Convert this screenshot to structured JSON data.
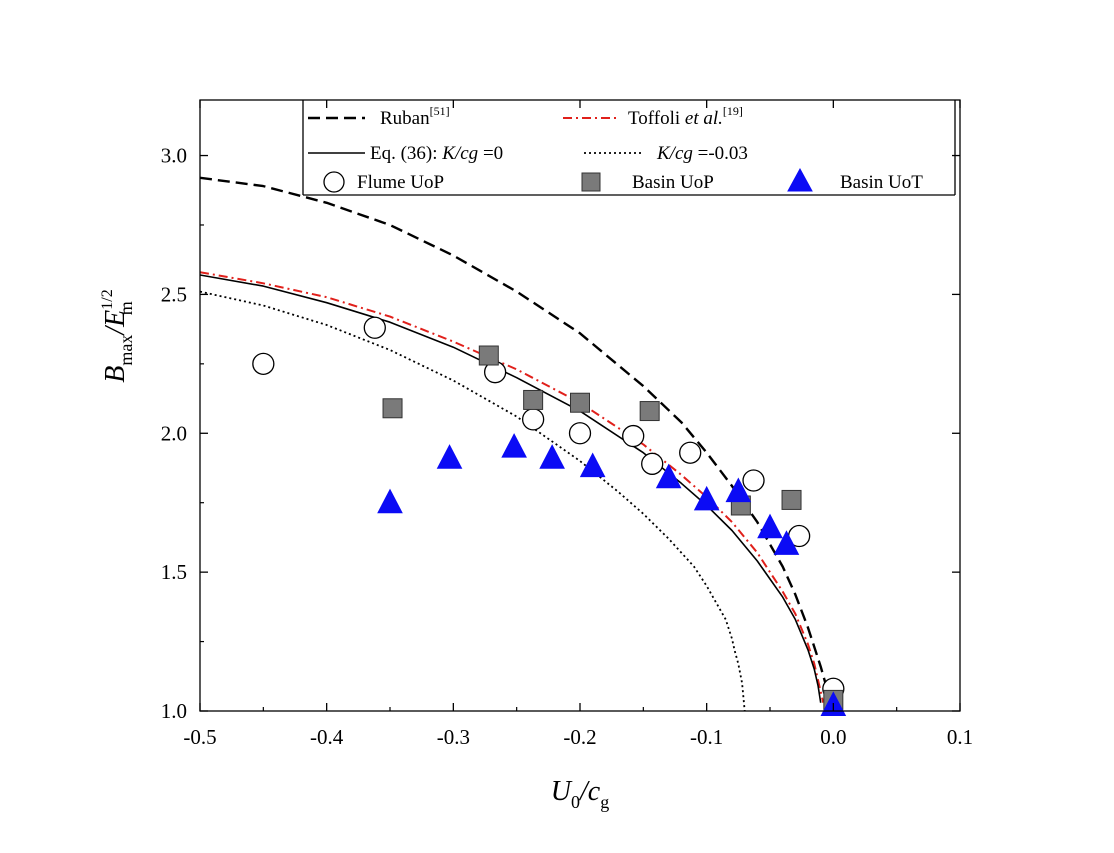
{
  "chart_data": {
    "type": "scatter",
    "title": "",
    "xlabel": {
      "base": "U",
      "sub1": "0",
      "slash": "/c",
      "sub2": "g"
    },
    "ylabel": {
      "base": "B",
      "sub1": "max",
      "slash": "/E",
      "sup": "1/2",
      "sub2": "m"
    },
    "xlim": [
      -0.5,
      0.1
    ],
    "ylim": [
      1.0,
      3.2
    ],
    "x_ticks": [
      -0.5,
      -0.4,
      -0.3,
      -0.2,
      -0.1,
      0.0,
      0.1
    ],
    "x_tick_labels": [
      "-0.5",
      "-0.4",
      "-0.3",
      "-0.2",
      "-0.1",
      "0.0",
      "0.1"
    ],
    "y_ticks": [
      1.0,
      1.5,
      2.0,
      2.5,
      3.0
    ],
    "y_tick_labels": [
      "1.0",
      "1.5",
      "2.0",
      "2.5",
      "3.0"
    ],
    "grid": false,
    "legend_position": "top",
    "legend": {
      "ruban": {
        "label": "Ruban",
        "ref": "[51]"
      },
      "toffoli": {
        "label": "Toffoli ",
        "italic": "et al.",
        "ref": "[19]"
      },
      "eq36": {
        "label": "Eq. (36):  ",
        "italic": "K/cg",
        "suffix": " =0"
      },
      "eq36_k003": {
        "italic": "K/cg",
        "suffix": " =-0.03"
      },
      "flume": {
        "label": "Flume UoP"
      },
      "basin_uop": {
        "label": "Basin  UoP"
      },
      "basin_uot": {
        "label": "Basin  UoT"
      }
    },
    "colors": {
      "ruban": "#000000",
      "toffoli": "#e0201b",
      "eq36": "#000000",
      "eq36_k003": "#000000",
      "square_fill": "#7a7a7a",
      "triangle_fill": "#0b0bf5"
    },
    "lines": [
      {
        "key": "ruban",
        "style": "dashed",
        "x": [
          -0.5,
          -0.45,
          -0.4,
          -0.35,
          -0.3,
          -0.25,
          -0.2,
          -0.15,
          -0.12,
          -0.1,
          -0.08,
          -0.06,
          -0.04,
          -0.03,
          -0.02,
          -0.01,
          -0.005,
          0.0
        ],
        "y": [
          2.92,
          2.89,
          2.83,
          2.75,
          2.64,
          2.51,
          2.36,
          2.17,
          2.04,
          1.93,
          1.81,
          1.68,
          1.52,
          1.42,
          1.3,
          1.16,
          1.08,
          1.0
        ]
      },
      {
        "key": "toffoli",
        "style": "dashdot",
        "x": [
          -0.5,
          -0.45,
          -0.4,
          -0.35,
          -0.3,
          -0.25,
          -0.2,
          -0.15,
          -0.12,
          -0.1,
          -0.08,
          -0.06,
          -0.04,
          -0.03,
          -0.02,
          -0.015,
          -0.012,
          -0.01,
          -0.008
        ],
        "y": [
          2.58,
          2.54,
          2.49,
          2.42,
          2.33,
          2.23,
          2.11,
          1.96,
          1.85,
          1.77,
          1.68,
          1.57,
          1.43,
          1.35,
          1.24,
          1.17,
          1.11,
          1.07,
          1.03
        ]
      },
      {
        "key": "eq36",
        "style": "solid",
        "x": [
          -0.5,
          -0.45,
          -0.4,
          -0.35,
          -0.3,
          -0.25,
          -0.2,
          -0.15,
          -0.12,
          -0.1,
          -0.08,
          -0.06,
          -0.04,
          -0.03,
          -0.02,
          -0.015,
          -0.012,
          -0.01
        ],
        "y": [
          2.57,
          2.53,
          2.47,
          2.4,
          2.31,
          2.2,
          2.08,
          1.93,
          1.82,
          1.74,
          1.65,
          1.54,
          1.41,
          1.33,
          1.22,
          1.15,
          1.09,
          1.03
        ]
      },
      {
        "key": "eq36_k003",
        "style": "dotted",
        "x": [
          -0.5,
          -0.45,
          -0.4,
          -0.35,
          -0.3,
          -0.25,
          -0.2,
          -0.17,
          -0.15,
          -0.13,
          -0.11,
          -0.1,
          -0.09,
          -0.085,
          -0.08,
          -0.078,
          -0.075,
          -0.072,
          -0.07
        ],
        "y": [
          2.51,
          2.46,
          2.39,
          2.3,
          2.19,
          2.06,
          1.9,
          1.79,
          1.71,
          1.62,
          1.52,
          1.45,
          1.37,
          1.33,
          1.26,
          1.22,
          1.17,
          1.1,
          1.0
        ]
      }
    ],
    "series": [
      {
        "key": "flume",
        "marker": "circle",
        "x": [
          -0.45,
          -0.362,
          -0.267,
          -0.237,
          -0.2,
          -0.158,
          -0.143,
          -0.113,
          -0.063,
          -0.027,
          0.0
        ],
        "y": [
          2.25,
          2.38,
          2.22,
          2.05,
          2.0,
          1.99,
          1.89,
          1.93,
          1.83,
          1.63,
          1.08
        ]
      },
      {
        "key": "basin_uop",
        "marker": "square",
        "x": [
          -0.348,
          -0.272,
          -0.237,
          -0.2,
          -0.145,
          -0.073,
          -0.033,
          0.0
        ],
        "y": [
          2.09,
          2.28,
          2.12,
          2.11,
          2.08,
          1.74,
          1.76,
          1.04
        ]
      },
      {
        "key": "basin_uot",
        "marker": "triangle",
        "x": [
          -0.35,
          -0.303,
          -0.252,
          -0.222,
          -0.19,
          -0.13,
          -0.1,
          -0.075,
          -0.05,
          -0.037,
          0.0
        ],
        "y": [
          1.75,
          1.91,
          1.95,
          1.91,
          1.88,
          1.84,
          1.76,
          1.79,
          1.66,
          1.6,
          1.02
        ]
      }
    ]
  }
}
